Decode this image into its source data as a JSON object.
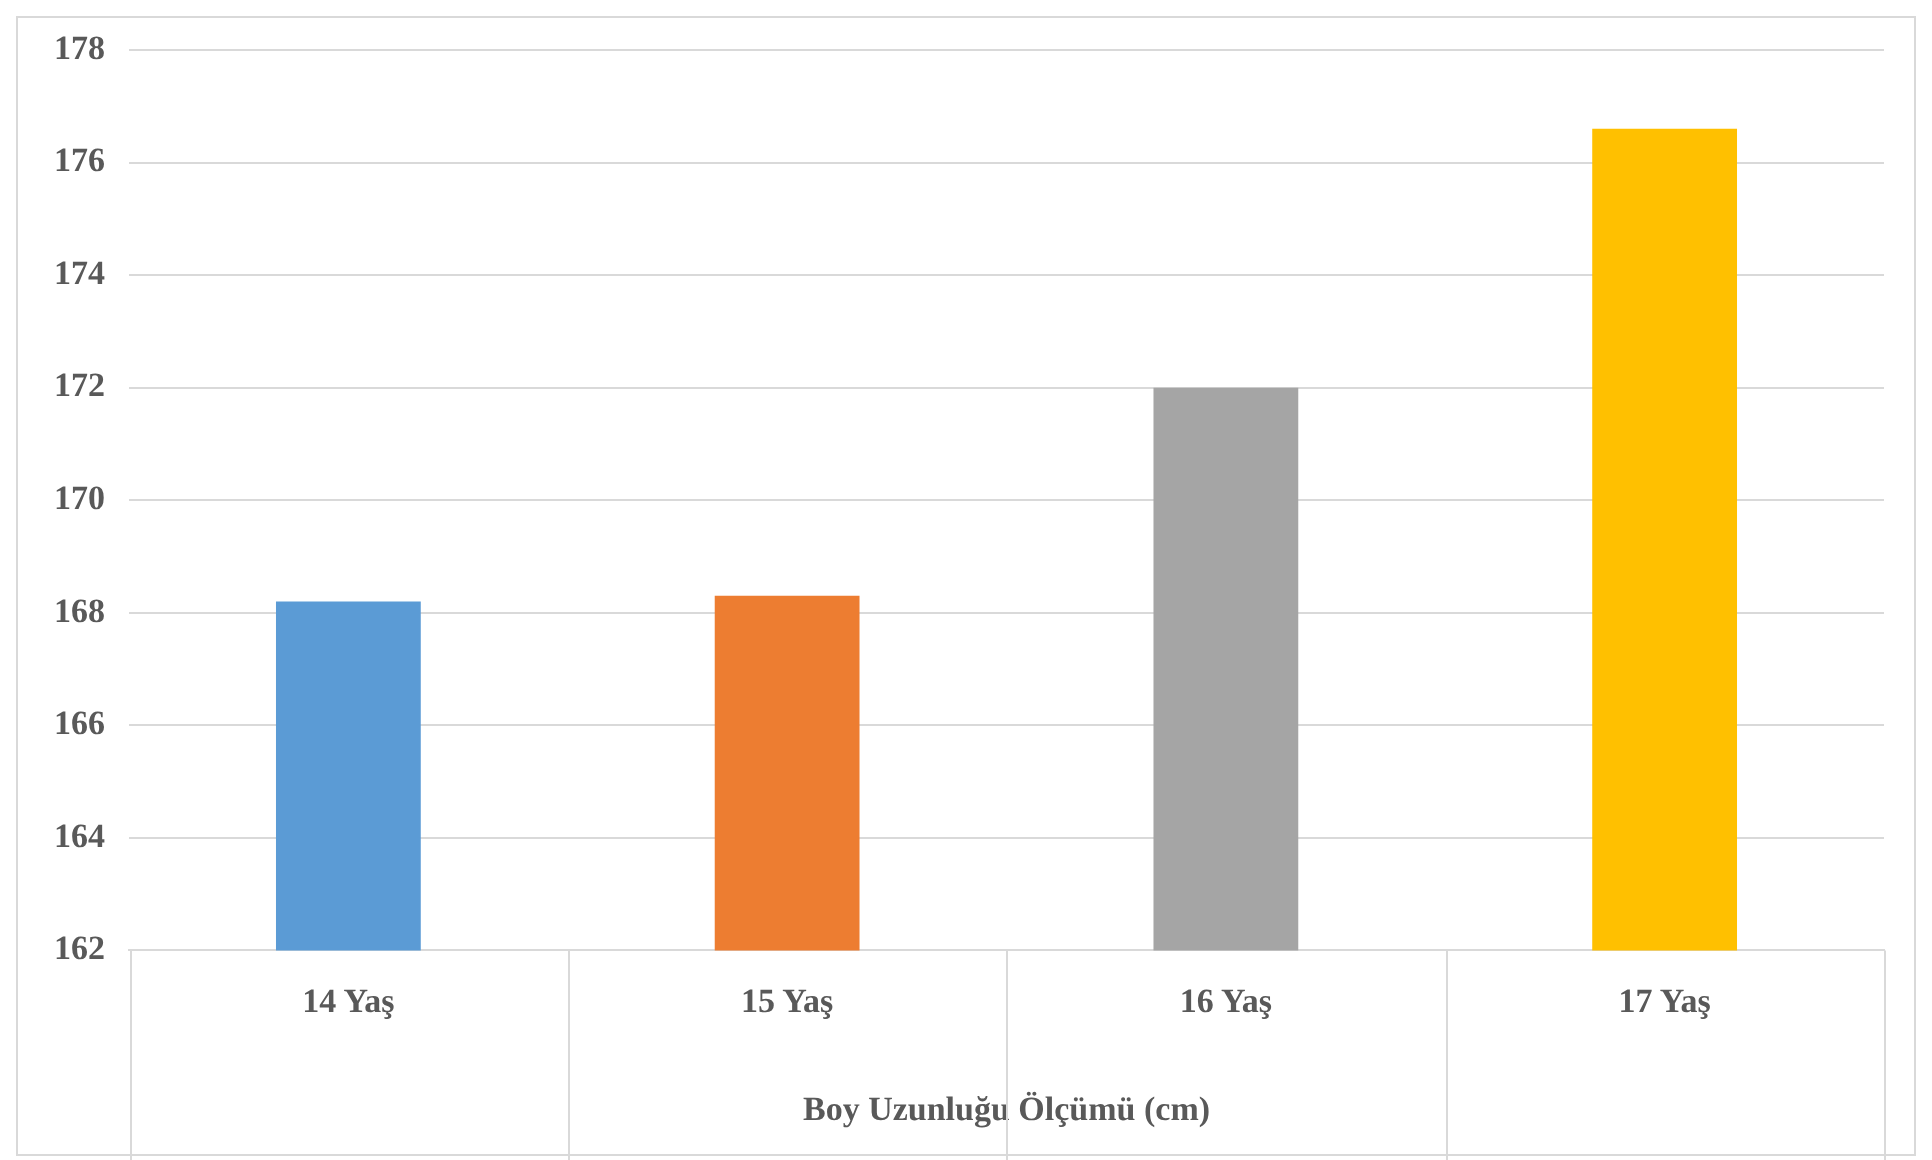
{
  "chart_data": {
    "type": "bar",
    "xlabel": "Boy Uzunluğu Ölçümü (cm)",
    "categories": [
      "14 Yaş",
      "15 Yaş",
      "16 Yaş",
      "17 Yaş"
    ],
    "values": [
      168.2,
      168.3,
      172.0,
      176.6
    ],
    "colors": [
      "#5b9bd5",
      "#ed7d31",
      "#a5a5a5",
      "#ffc000"
    ],
    "ylim": [
      162,
      178
    ],
    "yticks": [
      162,
      164,
      166,
      168,
      170,
      172,
      174,
      176,
      178
    ],
    "grid": "y",
    "legend": false
  }
}
